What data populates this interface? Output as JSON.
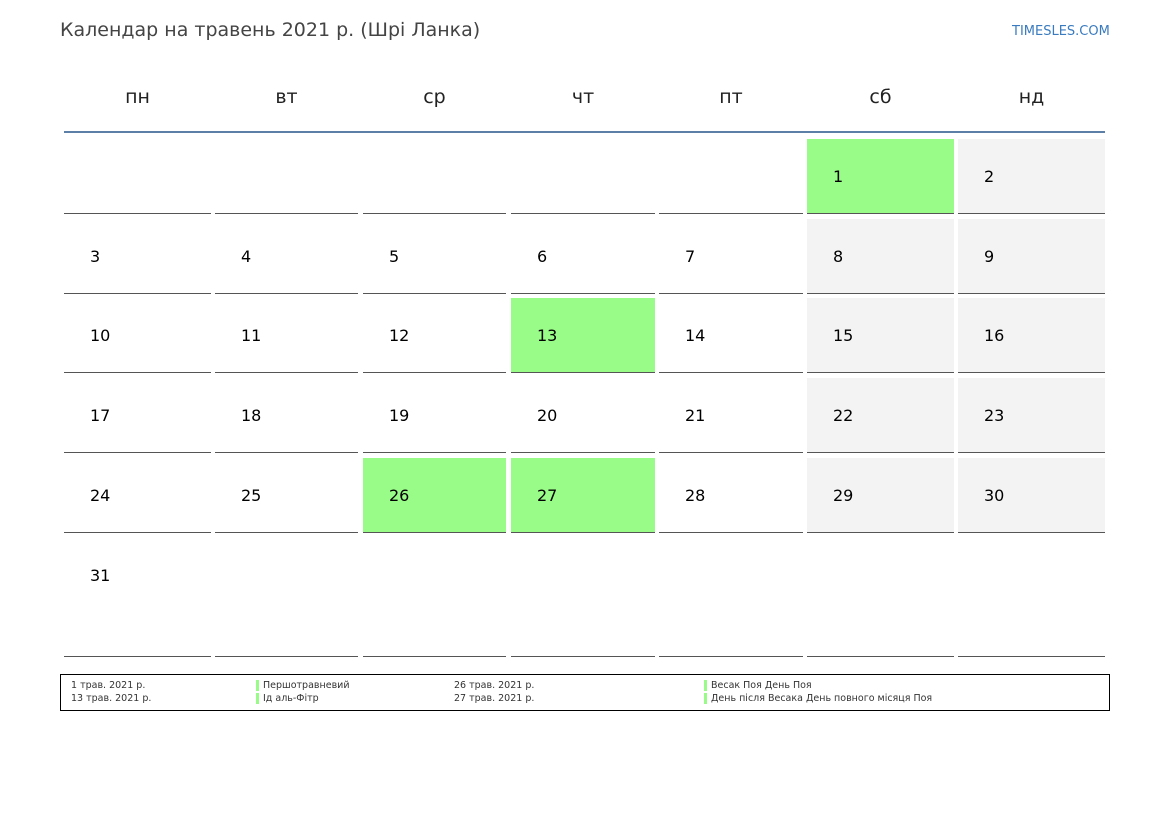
{
  "title": "Календар на травень 2021 р. (Шрі Ланка)",
  "site": "TIMESLES.COM",
  "colors": {
    "holiday": "#99fb88",
    "weekend": "#f3f3f3",
    "header_line": "#5b7fa6",
    "site_link": "#3a7bbf"
  },
  "weekdays": [
    "пн",
    "вт",
    "ср",
    "чт",
    "пт",
    "сб",
    "нд"
  ],
  "weeks": [
    [
      null,
      null,
      null,
      null,
      null,
      {
        "day": "1",
        "holiday": true
      },
      {
        "day": "2"
      }
    ],
    [
      {
        "day": "3"
      },
      {
        "day": "4"
      },
      {
        "day": "5"
      },
      {
        "day": "6"
      },
      {
        "day": "7"
      },
      {
        "day": "8"
      },
      {
        "day": "9"
      }
    ],
    [
      {
        "day": "10"
      },
      {
        "day": "11"
      },
      {
        "day": "12"
      },
      {
        "day": "13",
        "holiday": true
      },
      {
        "day": "14"
      },
      {
        "day": "15"
      },
      {
        "day": "16"
      }
    ],
    [
      {
        "day": "17"
      },
      {
        "day": "18"
      },
      {
        "day": "19"
      },
      {
        "day": "20"
      },
      {
        "day": "21"
      },
      {
        "day": "22"
      },
      {
        "day": "23"
      }
    ],
    [
      {
        "day": "24"
      },
      {
        "day": "25"
      },
      {
        "day": "26",
        "holiday": true
      },
      {
        "day": "27",
        "holiday": true
      },
      {
        "day": "28"
      },
      {
        "day": "29"
      },
      {
        "day": "30"
      }
    ],
    [
      {
        "day": "31"
      },
      null,
      null,
      null,
      null,
      null,
      null
    ]
  ],
  "legend": {
    "left": [
      {
        "date": "1 трав. 2021 р.",
        "name": "Першотравневий"
      },
      {
        "date": "13 трав. 2021 р.",
        "name": "Ід аль-Фітр"
      }
    ],
    "right": [
      {
        "date": "26 трав. 2021 р.",
        "name": "Весак Поя День Поя"
      },
      {
        "date": "27 трав. 2021 р.",
        "name": "День після Весака День повного місяця Поя"
      }
    ]
  }
}
